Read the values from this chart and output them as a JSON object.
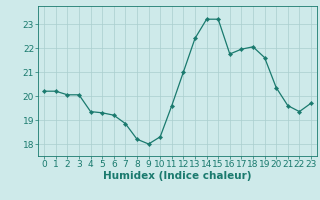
{
  "x": [
    0,
    1,
    2,
    3,
    4,
    5,
    6,
    7,
    8,
    9,
    10,
    11,
    12,
    13,
    14,
    15,
    16,
    17,
    18,
    19,
    20,
    21,
    22,
    23
  ],
  "y": [
    20.2,
    20.2,
    20.05,
    20.05,
    19.35,
    19.3,
    19.2,
    18.85,
    18.2,
    18.0,
    18.3,
    19.6,
    21.0,
    22.4,
    23.2,
    23.2,
    21.75,
    21.95,
    22.05,
    21.6,
    20.35,
    19.6,
    19.35,
    19.7
  ],
  "line_color": "#1a7a6e",
  "marker": "D",
  "marker_size": 2.2,
  "bg_color": "#ceeaea",
  "grid_color": "#aacece",
  "xlabel": "Humidex (Indice chaleur)",
  "ylim": [
    17.5,
    23.75
  ],
  "xlim": [
    -0.5,
    23.5
  ],
  "yticks": [
    18,
    19,
    20,
    21,
    22,
    23
  ],
  "xticks": [
    0,
    1,
    2,
    3,
    4,
    5,
    6,
    7,
    8,
    9,
    10,
    11,
    12,
    13,
    14,
    15,
    16,
    17,
    18,
    19,
    20,
    21,
    22,
    23
  ],
  "tick_color": "#1a7a6e",
  "label_color": "#1a7a6e",
  "font_size": 6.5,
  "xlabel_fontsize": 7.5
}
